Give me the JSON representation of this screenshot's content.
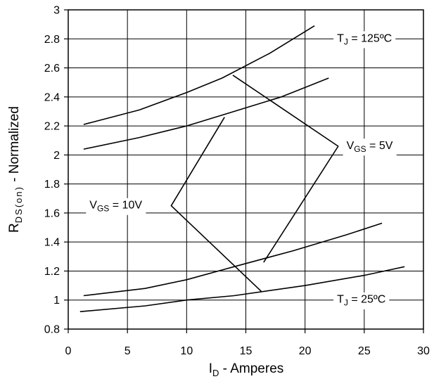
{
  "chart_data": {
    "type": "line",
    "title": "",
    "xlabel": {
      "main": "I",
      "sub": "D",
      "rest": " - Amperes"
    },
    "ylabel": {
      "main": "R",
      "sub": "DS(on)",
      "rest": " - Normalized"
    },
    "xlim": [
      0,
      30
    ],
    "ylim": [
      0.8,
      3
    ],
    "xticks": [
      0,
      5,
      10,
      15,
      20,
      25,
      30
    ],
    "xtick_labels": [
      "0",
      "5",
      "10",
      "15",
      "20",
      "25",
      "30"
    ],
    "yticks": [
      0.8,
      1,
      1.2,
      1.4,
      1.6,
      1.8,
      2,
      2.2,
      2.4,
      2.6,
      2.8,
      3
    ],
    "ytick_labels": [
      "0.8",
      "1",
      "1.2",
      "1.4",
      "1.6",
      "1.8",
      "2",
      "2.2",
      "2.4",
      "2.6",
      "2.8",
      "3"
    ],
    "grid": true,
    "series": [
      {
        "x": [
          1.3,
          6,
          10,
          13,
          17,
          20.8
        ],
        "y": [
          2.21,
          2.31,
          2.43,
          2.53,
          2.7,
          2.89
        ]
      },
      {
        "x": [
          1.3,
          6,
          10,
          14,
          18,
          22
        ],
        "y": [
          2.04,
          2.12,
          2.2,
          2.3,
          2.4,
          2.53
        ]
      },
      {
        "x": [
          1.3,
          6.5,
          10,
          14,
          19,
          23.5,
          26.5
        ],
        "y": [
          1.03,
          1.08,
          1.14,
          1.23,
          1.34,
          1.45,
          1.53
        ]
      },
      {
        "x": [
          1.0,
          6.5,
          10,
          14,
          20,
          25,
          28.4
        ],
        "y": [
          0.92,
          0.96,
          1.0,
          1.03,
          1.1,
          1.17,
          1.23
        ]
      },
      {
        "x": [
          13.9,
          22.8,
          16.5
        ],
        "y": [
          2.55,
          2.06,
          1.26
        ]
      },
      {
        "x": [
          13.2,
          8.7,
          16.3
        ],
        "y": [
          2.26,
          1.65,
          1.06
        ]
      }
    ],
    "annotations": {
      "tj_high": {
        "main": "T",
        "sub": "J",
        "rest": " = 125ºC",
        "x": 22.7,
        "y": 2.8
      },
      "tj_low": {
        "main": "T",
        "sub": "J",
        "rest": " = 25ºC",
        "x": 22.7,
        "y": 1.0
      },
      "vgs_5": {
        "main": "V",
        "sub": "GS",
        "rest": " = 5V",
        "x": 23.5,
        "y": 2.06
      },
      "vgs_10": {
        "main": "V",
        "sub": "GS",
        "rest": " = 10V",
        "x": 1.8,
        "y": 1.65
      }
    }
  }
}
